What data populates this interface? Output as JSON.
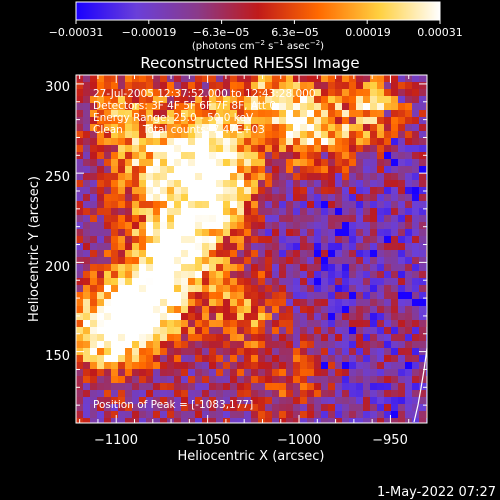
{
  "chart_data": {
    "type": "heatmap",
    "title": "Reconstructed RHESSI Image",
    "xlabel": "Heliocentric X (arcsec)",
    "ylabel": "Heliocentric Y (arcsec)",
    "xlim": [
      -1122,
      -930
    ],
    "ylim": [
      110,
      305
    ],
    "x_ticks": [
      {
        "value": -1100,
        "label": "−1100"
      },
      {
        "value": -1050,
        "label": "−1050"
      },
      {
        "value": -1000,
        "label": "−1000"
      },
      {
        "value": -950,
        "label": "−950"
      }
    ],
    "y_ticks": [
      {
        "value": 150,
        "label": "150"
      },
      {
        "value": 200,
        "label": "200"
      },
      {
        "value": 250,
        "label": "250"
      },
      {
        "value": 300,
        "label": "300"
      }
    ],
    "colorbar": {
      "range": [
        -0.00031,
        0.00031
      ],
      "tick_labels": [
        "−0.00031",
        "−0.00019",
        "−6.3e−05",
        "6.3e−05",
        "0.00019",
        "0.00031"
      ],
      "unit_parts": [
        "(photons cm",
        "−2",
        " s",
        "−1",
        " asec",
        "−2",
        ")"
      ],
      "colors": [
        "#1a00ff",
        "#6a3fd9",
        "#8a3a8a",
        "#c01a1a",
        "#ff6a00",
        "#ffd040",
        "#ffffff"
      ]
    },
    "annotations": [
      "27-Jul-2005 12:37:52.000 to 12:43:28.000",
      "Detectors: 3F 4F 5F 6F 7F 8F, Att 0",
      "Energy Range: 25.0 - 50.0 keV",
      "Clean      Total counts: 7.47E+03"
    ],
    "peak": {
      "label": "Position of Peak = [-1083,177]",
      "x": -1083,
      "y": 177
    },
    "emission_regions": [
      {
        "x": -1068,
        "y": 208,
        "intensity": 1.0
      },
      {
        "x": -1085,
        "y": 175,
        "intensity": 0.95
      },
      {
        "x": -1105,
        "y": 160,
        "intensity": 0.75
      },
      {
        "x": -1045,
        "y": 240,
        "intensity": 0.8
      },
      {
        "x": -1050,
        "y": 270,
        "intensity": 0.7
      },
      {
        "x": -1080,
        "y": 250,
        "intensity": 0.55
      },
      {
        "x": -1010,
        "y": 290,
        "intensity": 0.65
      },
      {
        "x": -990,
        "y": 270,
        "intensity": 0.6
      },
      {
        "x": -960,
        "y": 290,
        "intensity": 0.65
      },
      {
        "x": -1030,
        "y": 175,
        "intensity": 0.45
      },
      {
        "x": -1005,
        "y": 135,
        "intensity": 0.35
      },
      {
        "x": -1095,
        "y": 285,
        "intensity": 0.45
      }
    ]
  },
  "footer": {
    "timestamp": "1-May-2022 07:27"
  }
}
